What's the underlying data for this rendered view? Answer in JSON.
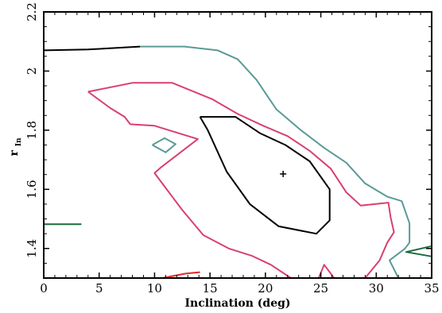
{
  "chart_data": {
    "type": "line",
    "title": "",
    "xlabel": "Inclination (deg)",
    "ylabel": {
      "main": "r",
      "sub": "In"
    },
    "xlim": [
      0,
      35
    ],
    "ylim": [
      1.3,
      2.2
    ],
    "x_ticks": [
      "0",
      "5",
      "10",
      "15",
      "20",
      "25",
      "30",
      "35"
    ],
    "x_tick_values": [
      0,
      5,
      10,
      15,
      20,
      25,
      30,
      35
    ],
    "y_ticks": [
      "1.4",
      "1.6",
      "1.8",
      "2",
      "2.2"
    ],
    "y_tick_values": [
      1.4,
      1.6,
      1.8,
      2.0,
      2.2
    ],
    "grid": false,
    "legend": "none",
    "best_fit_marker": {
      "x": 21.6,
      "y": 1.652,
      "symbol": "+"
    },
    "series": [
      {
        "color": "#000000",
        "points": [
          [
            14.1,
            1.845
          ],
          [
            17.3,
            1.845
          ],
          [
            19.5,
            1.79
          ],
          [
            21.8,
            1.75
          ],
          [
            24.0,
            1.695
          ],
          [
            25.8,
            1.6
          ],
          [
            25.8,
            1.495
          ],
          [
            24.6,
            1.45
          ],
          [
            21.2,
            1.475
          ],
          [
            18.6,
            1.55
          ],
          [
            16.5,
            1.66
          ],
          [
            14.8,
            1.8
          ],
          [
            14.1,
            1.845
          ]
        ]
      },
      {
        "color": "#000000",
        "points": [
          [
            0.0,
            2.07
          ],
          [
            4.0,
            2.073
          ],
          [
            8.7,
            2.083
          ]
        ]
      },
      {
        "color": "#5a9a96",
        "points": [
          [
            8.7,
            2.083
          ],
          [
            12.7,
            2.083
          ],
          [
            15.7,
            2.07
          ],
          [
            17.5,
            2.04
          ],
          [
            19.2,
            1.97
          ],
          [
            21.0,
            1.87
          ],
          [
            23.2,
            1.8
          ],
          [
            25.3,
            1.74
          ],
          [
            27.3,
            1.69
          ],
          [
            29.0,
            1.62
          ],
          [
            31.0,
            1.575
          ],
          [
            32.3,
            1.56
          ],
          [
            33.0,
            1.485
          ],
          [
            33.0,
            1.42
          ],
          [
            32.6,
            1.4
          ],
          [
            31.2,
            1.36
          ],
          [
            32.0,
            1.3
          ]
        ]
      },
      {
        "color": "#d94070",
        "points": [
          [
            4.0,
            1.93
          ],
          [
            8.0,
            1.96
          ],
          [
            11.6,
            1.96
          ],
          [
            15.2,
            1.905
          ],
          [
            17.5,
            1.855
          ],
          [
            19.8,
            1.815
          ],
          [
            22.0,
            1.78
          ],
          [
            24.0,
            1.73
          ],
          [
            25.9,
            1.67
          ],
          [
            27.3,
            1.59
          ],
          [
            28.6,
            1.545
          ],
          [
            31.1,
            1.555
          ],
          [
            31.3,
            1.505
          ],
          [
            31.6,
            1.455
          ],
          [
            31.0,
            1.42
          ],
          [
            30.3,
            1.36
          ],
          [
            29.0,
            1.3
          ]
        ]
      },
      {
        "color": "#d94070",
        "points": [
          [
            4.0,
            1.93
          ],
          [
            6.0,
            1.875
          ],
          [
            7.3,
            1.845
          ],
          [
            7.8,
            1.82
          ],
          [
            10.0,
            1.815
          ],
          [
            13.9,
            1.77
          ],
          [
            10.6,
            1.675
          ],
          [
            10.0,
            1.655
          ],
          [
            12.5,
            1.53
          ],
          [
            14.4,
            1.445
          ],
          [
            16.7,
            1.4
          ],
          [
            18.8,
            1.375
          ],
          [
            20.5,
            1.345
          ],
          [
            22.3,
            1.3
          ]
        ]
      },
      {
        "color": "#d94070",
        "points": [
          [
            24.8,
            1.3
          ],
          [
            25.3,
            1.345
          ],
          [
            26.2,
            1.3
          ]
        ]
      },
      {
        "color": "#e12828",
        "points": [
          [
            10.7,
            1.3
          ],
          [
            12.8,
            1.315
          ],
          [
            14.1,
            1.32
          ]
        ]
      },
      {
        "color": "#5a9a96",
        "points": [
          [
            9.8,
            1.75
          ],
          [
            11.0,
            1.725
          ],
          [
            11.9,
            1.753
          ],
          [
            10.9,
            1.773
          ],
          [
            9.8,
            1.75
          ]
        ]
      },
      {
        "color": "#1a6a3a",
        "points": [
          [
            0.0,
            1.482
          ],
          [
            3.4,
            1.482
          ]
        ]
      },
      {
        "color": "#1a6a3a",
        "points": [
          [
            35.0,
            1.408
          ],
          [
            32.7,
            1.388
          ],
          [
            35.0,
            1.373
          ]
        ]
      }
    ]
  }
}
